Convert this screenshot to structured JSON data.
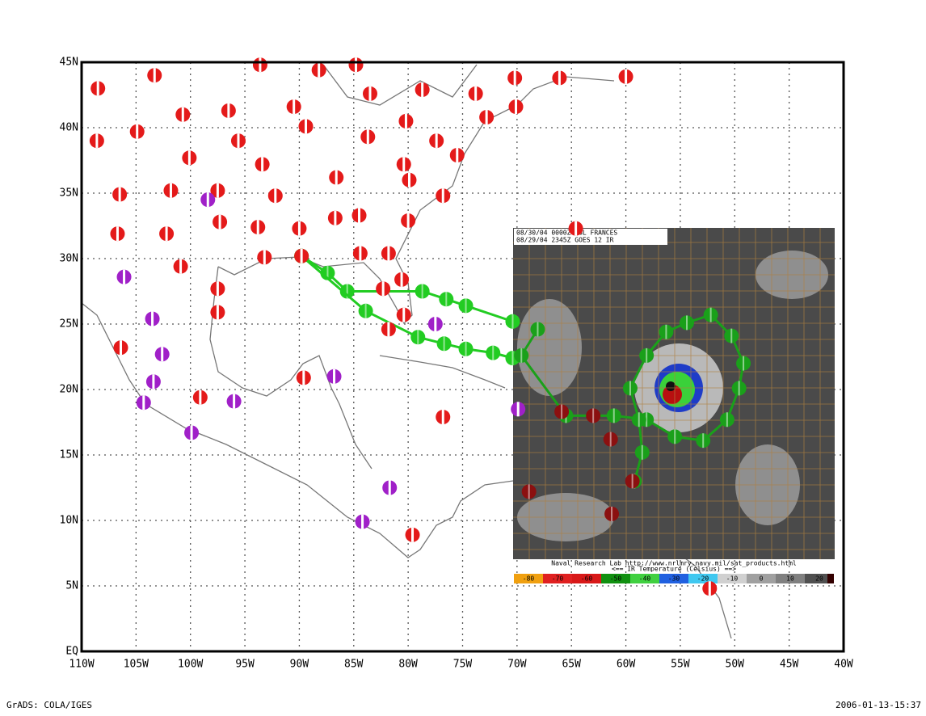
{
  "map": {
    "xlim": [
      -110,
      -40
    ],
    "ylim": [
      0,
      45
    ],
    "xticks": [
      {
        "value": -110,
        "label": "110W"
      },
      {
        "value": -105,
        "label": "105W"
      },
      {
        "value": -100,
        "label": "100W"
      },
      {
        "value": -95,
        "label": "95W"
      },
      {
        "value": -90,
        "label": "90W"
      },
      {
        "value": -85,
        "label": "85W"
      },
      {
        "value": -80,
        "label": "80W"
      },
      {
        "value": -75,
        "label": "75W"
      },
      {
        "value": -70,
        "label": "70W"
      },
      {
        "value": -65,
        "label": "65W"
      },
      {
        "value": -60,
        "label": "60W"
      },
      {
        "value": -55,
        "label": "55W"
      },
      {
        "value": -50,
        "label": "50W"
      },
      {
        "value": -45,
        "label": "45W"
      },
      {
        "value": -40,
        "label": "40W"
      }
    ],
    "yticks": [
      {
        "value": 0,
        "label": "EQ"
      },
      {
        "value": 5,
        "label": "5N"
      },
      {
        "value": 10,
        "label": "10N"
      },
      {
        "value": 15,
        "label": "15N"
      },
      {
        "value": 20,
        "label": "20N"
      },
      {
        "value": 25,
        "label": "25N"
      },
      {
        "value": 30,
        "label": "30N"
      },
      {
        "value": 35,
        "label": "35N"
      },
      {
        "value": 40,
        "label": "40N"
      },
      {
        "value": 45,
        "label": "45N"
      }
    ],
    "grid": true,
    "groups": [
      {
        "color": "#e41a1a",
        "points": [
          [
            -108.5,
            43.0
          ],
          [
            -103.3,
            44.0
          ],
          [
            -93.6,
            44.8
          ],
          [
            -88.2,
            44.4
          ],
          [
            -84.8,
            44.8
          ],
          [
            -83.5,
            42.6
          ],
          [
            -78.7,
            42.9
          ],
          [
            -73.8,
            42.6
          ],
          [
            -70.2,
            43.8
          ],
          [
            -66.1,
            43.8
          ],
          [
            -60.0,
            43.9
          ],
          [
            -100.7,
            41.0
          ],
          [
            -96.5,
            41.3
          ],
          [
            -90.5,
            41.6
          ],
          [
            -89.4,
            40.1
          ],
          [
            -80.2,
            40.5
          ],
          [
            -72.8,
            40.8
          ],
          [
            -70.1,
            41.6
          ],
          [
            -108.6,
            39.0
          ],
          [
            -104.9,
            39.7
          ],
          [
            -95.6,
            39.0
          ],
          [
            -83.7,
            39.3
          ],
          [
            -77.4,
            39.0
          ],
          [
            -75.5,
            37.9
          ],
          [
            -100.1,
            37.7
          ],
          [
            -93.4,
            37.2
          ],
          [
            -80.4,
            37.2
          ],
          [
            -79.9,
            36.0
          ],
          [
            -86.6,
            36.2
          ],
          [
            -106.5,
            34.9
          ],
          [
            -101.8,
            35.2
          ],
          [
            -97.5,
            35.2
          ],
          [
            -92.2,
            34.8
          ],
          [
            -76.8,
            34.8
          ],
          [
            -97.3,
            32.8
          ],
          [
            -93.8,
            32.4
          ],
          [
            -90.0,
            32.3
          ],
          [
            -86.7,
            33.1
          ],
          [
            -84.5,
            33.3
          ],
          [
            -80.0,
            32.9
          ],
          [
            -64.6,
            32.3
          ],
          [
            -106.7,
            31.9
          ],
          [
            -102.2,
            31.9
          ],
          [
            -100.9,
            29.4
          ],
          [
            -93.2,
            30.1
          ],
          [
            -84.4,
            30.4
          ],
          [
            -81.8,
            30.4
          ],
          [
            -97.5,
            27.7
          ],
          [
            -80.6,
            28.4
          ],
          [
            -82.3,
            27.7
          ],
          [
            -97.5,
            25.9
          ],
          [
            -80.4,
            25.7
          ],
          [
            -81.8,
            24.6
          ],
          [
            -106.4,
            23.2
          ],
          [
            -89.6,
            20.9
          ],
          [
            -99.1,
            19.4
          ],
          [
            -76.8,
            17.9
          ],
          [
            -52.3,
            4.8
          ],
          [
            -79.6,
            8.9
          ]
        ]
      },
      {
        "color": "#a020c8",
        "points": [
          [
            -98.4,
            34.5
          ],
          [
            -106.1,
            28.6
          ],
          [
            -103.5,
            25.4
          ],
          [
            -102.6,
            22.7
          ],
          [
            -103.4,
            20.6
          ],
          [
            -104.3,
            19.0
          ],
          [
            -96.0,
            19.1
          ],
          [
            -86.8,
            21.0
          ],
          [
            -77.5,
            25.0
          ],
          [
            -99.9,
            16.7
          ],
          [
            -81.7,
            12.5
          ],
          [
            -84.2,
            9.9
          ],
          [
            -69.9,
            18.5
          ]
        ]
      }
    ],
    "tracks": [
      {
        "color": "#22cc22",
        "points": [
          [
            -89.8,
            30.2
          ],
          [
            -87.4,
            28.9
          ],
          [
            -85.6,
            27.5
          ],
          [
            -78.7,
            27.5
          ],
          [
            -76.5,
            26.9
          ],
          [
            -74.7,
            26.4
          ],
          [
            -70.4,
            25.2
          ]
        ]
      },
      {
        "color": "#22cc22",
        "points": [
          [
            -89.8,
            30.2
          ],
          [
            -83.9,
            26.0
          ],
          [
            -79.1,
            24.0
          ],
          [
            -76.7,
            23.5
          ],
          [
            -74.7,
            23.1
          ],
          [
            -72.2,
            22.8
          ],
          [
            -70.4,
            22.4
          ]
        ]
      },
      {
        "color": "#1aa01a",
        "points": [
          [
            -68.1,
            24.6
          ],
          [
            -69.6,
            22.6
          ],
          [
            -65.5,
            18.0
          ],
          [
            -61.1,
            18.0
          ],
          [
            -58.1,
            17.7
          ],
          [
            -55.5,
            16.4
          ],
          [
            -52.9,
            16.1
          ],
          [
            -50.7,
            17.7
          ],
          [
            -49.6,
            20.1
          ],
          [
            -49.2,
            22.0
          ],
          [
            -50.3,
            24.1
          ],
          [
            -52.2,
            25.7
          ],
          [
            -54.4,
            25.1
          ],
          [
            -56.3,
            24.4
          ],
          [
            -58.1,
            22.6
          ],
          [
            -59.6,
            20.1
          ],
          [
            -58.8,
            17.7
          ],
          [
            -58.5,
            15.2
          ],
          [
            -59.2,
            13.0
          ]
        ]
      },
      {
        "color": "#8b1010",
        "points": [
          [
            -65.9,
            18.3
          ],
          [
            -63.0,
            18.0
          ],
          [
            -61.4,
            16.2
          ],
          [
            -59.4,
            13.0
          ],
          [
            -61.3,
            10.5
          ],
          [
            -68.9,
            12.2
          ],
          [
            -89.8,
            30.2
          ]
        ]
      }
    ]
  },
  "inset": {
    "header": [
      "08/30/04 0000Z  06L FRANCES",
      "08/29/04 2345Z  GOES 12 IR"
    ],
    "footer": [
      "Naval Research Lab http://www.nrlmry.navy.mil/sat_products.html",
      "<==  IR Temperature (Celsius)  ==>"
    ],
    "colorbar_labels": [
      "-80",
      "-70",
      "-60",
      "-50",
      "-40",
      "-30",
      "-20",
      "-10",
      "0",
      "10",
      "20"
    ]
  },
  "footer": {
    "left": "GrADS: COLA/IGES",
    "right": "2006-01-13-15:37"
  }
}
